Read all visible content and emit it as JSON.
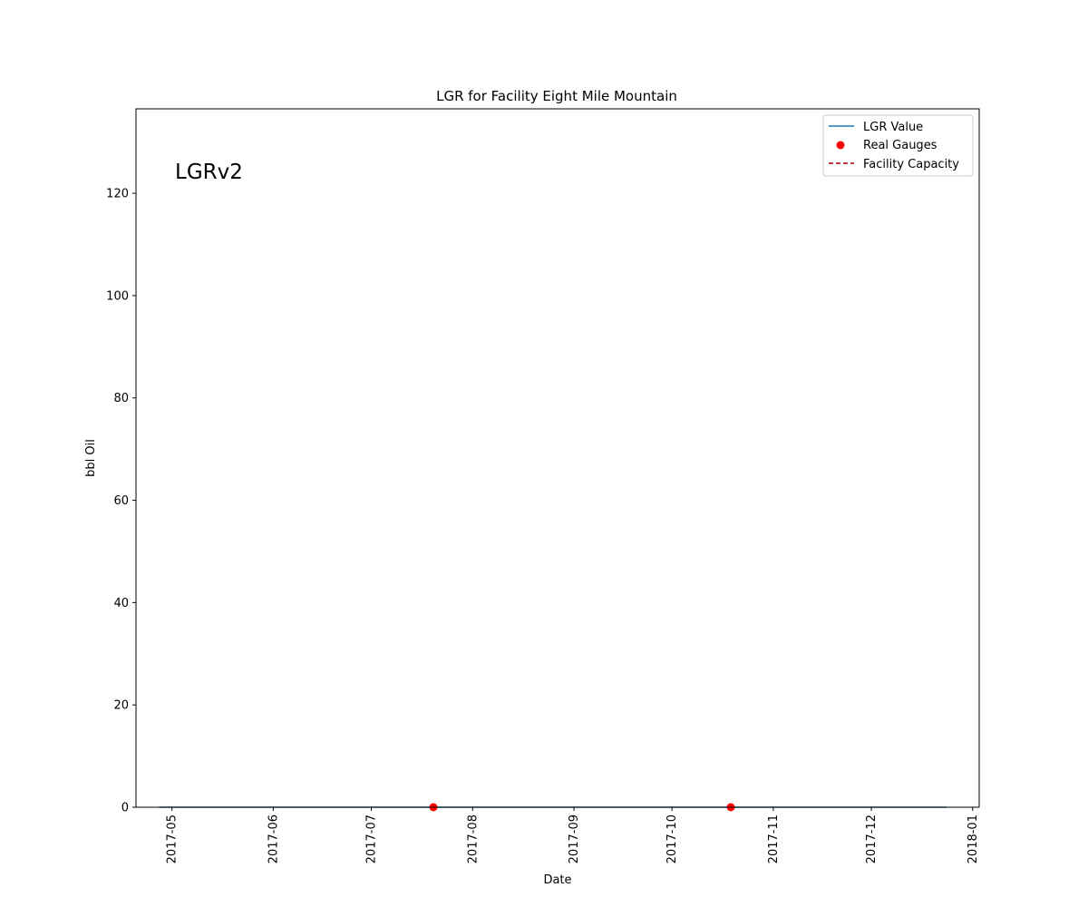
{
  "colors": {
    "lgr_line": "#1f77b4",
    "gauge_point": "#ff0000",
    "capacity_line": "#b30000",
    "axes": "#000000",
    "background": "#ffffff"
  },
  "chart_data": {
    "type": "line",
    "title": "LGR for Facility Eight Mile Mountain",
    "xlabel": "Date",
    "ylabel": "bbl Oil",
    "annotation": "LGRv2",
    "grid": false,
    "legend_position": "top-right",
    "xlim": [
      "2017-04-20",
      "2018-01-03"
    ],
    "ylim": [
      0,
      136.5
    ],
    "x_ticks": [
      "2017-05",
      "2017-06",
      "2017-07",
      "2017-08",
      "2017-09",
      "2017-10",
      "2017-11",
      "2017-12",
      "2018-01"
    ],
    "y_ticks": [
      0,
      20,
      40,
      60,
      80,
      100,
      120
    ],
    "series": [
      {
        "name": "LGR Value",
        "kind": "line",
        "style": "solid",
        "x": [
          "2017-04-27",
          "2017-12-24"
        ],
        "y": [
          0,
          0
        ]
      },
      {
        "name": "Real Gauges",
        "kind": "scatter",
        "x": [
          "2017-07-20",
          "2017-10-19"
        ],
        "y": [
          0,
          0
        ]
      },
      {
        "name": "Facility Capacity",
        "kind": "line",
        "style": "dashed",
        "x": [],
        "y": []
      }
    ]
  }
}
